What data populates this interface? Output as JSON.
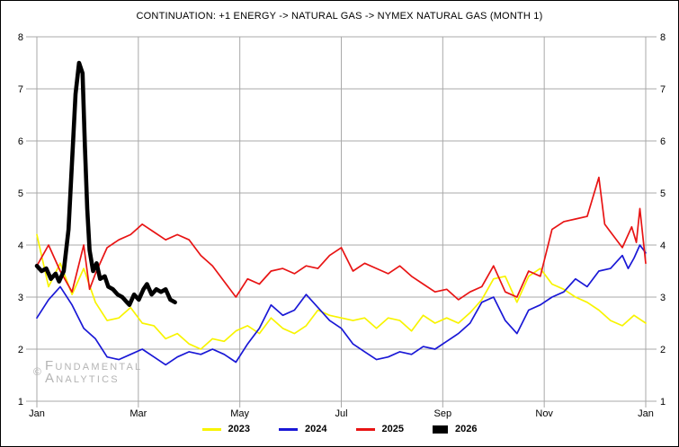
{
  "title": "CONTINUATION: +1 ENERGY -> NATURAL GAS -> NYMEX NATURAL GAS (MONTH 1)",
  "watermark": {
    "symbol": "©",
    "line1": "Fundamental",
    "line2": "Analytics"
  },
  "legend": [
    {
      "label": "2023",
      "color": "#f8f400",
      "swatch": "line"
    },
    {
      "label": "2024",
      "color": "#1a18d6",
      "swatch": "line"
    },
    {
      "label": "2025",
      "color": "#e81414",
      "swatch": "line"
    },
    {
      "label": "2026",
      "color": "#000000",
      "swatch": "rect"
    }
  ],
  "chart_data": {
    "type": "line",
    "title": "CONTINUATION: +1 ENERGY -> NATURAL GAS -> NYMEX NATURAL GAS (MONTH 1)",
    "xlabel": "",
    "ylabel": "",
    "x_axis": {
      "tick_labels": [
        "Jan",
        "Mar",
        "May",
        "Jul",
        "Sep",
        "Nov",
        "Jan"
      ],
      "units": "weeks-of-year",
      "range_weeks": [
        0,
        52
      ]
    },
    "y_axis": {
      "ticks": [
        1,
        2,
        3,
        4,
        5,
        6,
        7,
        8
      ],
      "ylim": [
        1,
        8
      ],
      "sides": "both"
    },
    "grid": true,
    "legend_position": "bottom-center",
    "grid_color": "#a9a9a9",
    "label_color": "#000000",
    "series": [
      {
        "name": "2023",
        "color": "#f8f400",
        "width": 1.7,
        "points": [
          [
            0,
            4.2
          ],
          [
            1,
            3.2
          ],
          [
            2,
            3.65
          ],
          [
            3,
            3.05
          ],
          [
            4,
            3.55
          ],
          [
            5,
            2.9
          ],
          [
            6,
            2.55
          ],
          [
            7,
            2.6
          ],
          [
            8,
            2.8
          ],
          [
            9,
            2.5
          ],
          [
            10,
            2.45
          ],
          [
            11,
            2.2
          ],
          [
            12,
            2.3
          ],
          [
            13,
            2.1
          ],
          [
            14,
            2.0
          ],
          [
            15,
            2.2
          ],
          [
            16,
            2.15
          ],
          [
            17,
            2.35
          ],
          [
            18,
            2.45
          ],
          [
            19,
            2.3
          ],
          [
            20,
            2.6
          ],
          [
            21,
            2.4
          ],
          [
            22,
            2.3
          ],
          [
            23,
            2.45
          ],
          [
            24,
            2.75
          ],
          [
            25,
            2.65
          ],
          [
            26,
            2.6
          ],
          [
            27,
            2.55
          ],
          [
            28,
            2.6
          ],
          [
            29,
            2.4
          ],
          [
            30,
            2.6
          ],
          [
            31,
            2.55
          ],
          [
            32,
            2.35
          ],
          [
            33,
            2.65
          ],
          [
            34,
            2.5
          ],
          [
            35,
            2.6
          ],
          [
            36,
            2.5
          ],
          [
            37,
            2.7
          ],
          [
            38,
            2.95
          ],
          [
            39,
            3.35
          ],
          [
            40,
            3.4
          ],
          [
            41,
            2.9
          ],
          [
            42,
            3.4
          ],
          [
            43,
            3.55
          ],
          [
            44,
            3.25
          ],
          [
            45,
            3.15
          ],
          [
            46,
            3.0
          ],
          [
            47,
            2.9
          ],
          [
            48,
            2.75
          ],
          [
            49,
            2.55
          ],
          [
            50,
            2.45
          ],
          [
            51,
            2.65
          ],
          [
            52,
            2.5
          ]
        ]
      },
      {
        "name": "2024",
        "color": "#1a18d6",
        "width": 1.7,
        "points": [
          [
            0,
            2.6
          ],
          [
            1,
            2.95
          ],
          [
            2,
            3.2
          ],
          [
            3,
            2.85
          ],
          [
            4,
            2.4
          ],
          [
            5,
            2.2
          ],
          [
            6,
            1.85
          ],
          [
            7,
            1.8
          ],
          [
            8,
            1.9
          ],
          [
            9,
            2.0
          ],
          [
            10,
            1.85
          ],
          [
            11,
            1.7
          ],
          [
            12,
            1.85
          ],
          [
            13,
            1.95
          ],
          [
            14,
            1.9
          ],
          [
            15,
            2.0
          ],
          [
            16,
            1.9
          ],
          [
            17,
            1.75
          ],
          [
            18,
            2.1
          ],
          [
            19,
            2.4
          ],
          [
            20,
            2.85
          ],
          [
            21,
            2.65
          ],
          [
            22,
            2.75
          ],
          [
            23,
            3.05
          ],
          [
            24,
            2.8
          ],
          [
            25,
            2.55
          ],
          [
            26,
            2.4
          ],
          [
            27,
            2.1
          ],
          [
            28,
            1.95
          ],
          [
            29,
            1.8
          ],
          [
            30,
            1.85
          ],
          [
            31,
            1.95
          ],
          [
            32,
            1.9
          ],
          [
            33,
            2.05
          ],
          [
            34,
            2.0
          ],
          [
            35,
            2.15
          ],
          [
            36,
            2.3
          ],
          [
            37,
            2.5
          ],
          [
            38,
            2.9
          ],
          [
            39,
            3.0
          ],
          [
            40,
            2.55
          ],
          [
            41,
            2.3
          ],
          [
            42,
            2.75
          ],
          [
            43,
            2.85
          ],
          [
            44,
            3.0
          ],
          [
            45,
            3.1
          ],
          [
            46,
            3.35
          ],
          [
            47,
            3.2
          ],
          [
            48,
            3.5
          ],
          [
            49,
            3.55
          ],
          [
            50,
            3.8
          ],
          [
            50.5,
            3.55
          ],
          [
            51,
            3.75
          ],
          [
            51.5,
            4.0
          ],
          [
            52,
            3.85
          ]
        ]
      },
      {
        "name": "2025",
        "color": "#e81414",
        "width": 1.7,
        "points": [
          [
            0,
            3.6
          ],
          [
            1,
            4.0
          ],
          [
            2,
            3.5
          ],
          [
            3,
            3.1
          ],
          [
            4,
            4.0
          ],
          [
            4.5,
            3.15
          ],
          [
            5,
            3.45
          ],
          [
            6,
            3.95
          ],
          [
            7,
            4.1
          ],
          [
            8,
            4.2
          ],
          [
            9,
            4.4
          ],
          [
            10,
            4.25
          ],
          [
            11,
            4.1
          ],
          [
            12,
            4.2
          ],
          [
            13,
            4.1
          ],
          [
            14,
            3.8
          ],
          [
            15,
            3.6
          ],
          [
            16,
            3.3
          ],
          [
            17,
            3.0
          ],
          [
            18,
            3.35
          ],
          [
            19,
            3.25
          ],
          [
            20,
            3.5
          ],
          [
            21,
            3.55
          ],
          [
            22,
            3.45
          ],
          [
            23,
            3.6
          ],
          [
            24,
            3.55
          ],
          [
            25,
            3.8
          ],
          [
            26,
            3.95
          ],
          [
            27,
            3.5
          ],
          [
            28,
            3.65
          ],
          [
            29,
            3.55
          ],
          [
            30,
            3.45
          ],
          [
            31,
            3.6
          ],
          [
            32,
            3.4
          ],
          [
            33,
            3.25
          ],
          [
            34,
            3.1
          ],
          [
            35,
            3.15
          ],
          [
            36,
            2.95
          ],
          [
            37,
            3.1
          ],
          [
            38,
            3.2
          ],
          [
            39,
            3.6
          ],
          [
            40,
            3.1
          ],
          [
            41,
            3.0
          ],
          [
            42,
            3.5
          ],
          [
            43,
            3.4
          ],
          [
            44,
            4.3
          ],
          [
            45,
            4.45
          ],
          [
            46,
            4.5
          ],
          [
            47,
            4.55
          ],
          [
            48,
            5.3
          ],
          [
            48.5,
            4.4
          ],
          [
            49,
            4.25
          ],
          [
            50,
            3.95
          ],
          [
            50.8,
            4.35
          ],
          [
            51.2,
            4.05
          ],
          [
            51.5,
            4.7
          ],
          [
            52,
            3.65
          ]
        ]
      },
      {
        "name": "2026",
        "color": "#000000",
        "width": 4.6,
        "points": [
          [
            0,
            3.6
          ],
          [
            0.4,
            3.5
          ],
          [
            0.8,
            3.55
          ],
          [
            1.2,
            3.35
          ],
          [
            1.6,
            3.45
          ],
          [
            1.9,
            3.3
          ],
          [
            2.3,
            3.5
          ],
          [
            2.7,
            4.3
          ],
          [
            3.0,
            5.6
          ],
          [
            3.3,
            6.9
          ],
          [
            3.6,
            7.5
          ],
          [
            3.9,
            7.3
          ],
          [
            4.1,
            5.9
          ],
          [
            4.3,
            4.7
          ],
          [
            4.5,
            3.9
          ],
          [
            4.8,
            3.5
          ],
          [
            5.1,
            3.65
          ],
          [
            5.4,
            3.35
          ],
          [
            5.8,
            3.4
          ],
          [
            6.1,
            3.2
          ],
          [
            6.5,
            3.15
          ],
          [
            6.9,
            3.05
          ],
          [
            7.3,
            3.0
          ],
          [
            7.7,
            2.9
          ],
          [
            7.9,
            2.85
          ],
          [
            8.3,
            3.05
          ],
          [
            8.7,
            2.95
          ],
          [
            9.1,
            3.15
          ],
          [
            9.4,
            3.25
          ],
          [
            9.8,
            3.05
          ],
          [
            10.2,
            3.15
          ],
          [
            10.6,
            3.1
          ],
          [
            11.0,
            3.15
          ],
          [
            11.4,
            2.95
          ],
          [
            11.8,
            2.9
          ]
        ]
      }
    ]
  }
}
